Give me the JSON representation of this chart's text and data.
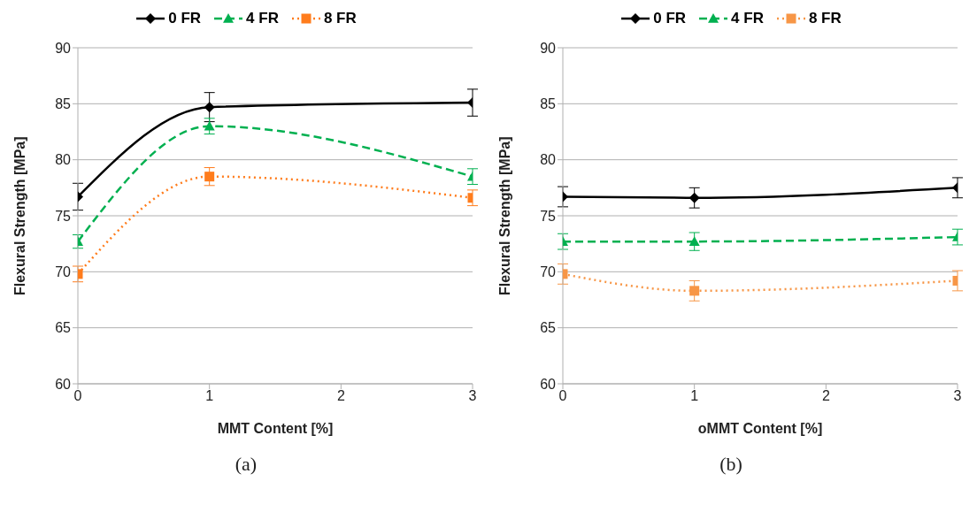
{
  "chart_data": [
    {
      "type": "line",
      "xlabel": "MMT Content [%]",
      "ylabel": "Flexural Strength [MPa]",
      "x": [
        0,
        1,
        3
      ],
      "xlim": [
        0,
        3
      ],
      "xticks": [
        0,
        1,
        2,
        3
      ],
      "ylim": [
        60,
        90
      ],
      "yticks": [
        60,
        65,
        70,
        75,
        80,
        85,
        90
      ],
      "grid": "y",
      "legend": "top",
      "annotations": [
        "(a)"
      ],
      "series": [
        {
          "name": "0 FR",
          "color": "#000000",
          "values": [
            76.7,
            84.7,
            85.1
          ],
          "errors": [
            1.2,
            1.3,
            1.2
          ],
          "marker": "diamond",
          "line_style": "solid"
        },
        {
          "name": "4 FR",
          "color": "#00b050",
          "values": [
            72.7,
            83.0,
            78.5
          ],
          "errors": [
            0.6,
            0.7,
            0.7
          ],
          "marker": "triangle",
          "line_style": "dashed"
        },
        {
          "name": "8 FR",
          "color": "#ff7c1c",
          "values": [
            69.8,
            78.5,
            76.6
          ],
          "errors": [
            0.7,
            0.8,
            0.7
          ],
          "marker": "square",
          "line_style": "dotted"
        }
      ]
    },
    {
      "type": "line",
      "xlabel": "oMMT Content [%]",
      "ylabel": "Flexural Strength [MPa]",
      "x": [
        0,
        1,
        3
      ],
      "xlim": [
        0,
        3
      ],
      "xticks": [
        0,
        1,
        2,
        3
      ],
      "ylim": [
        60,
        90
      ],
      "yticks": [
        60,
        65,
        70,
        75,
        80,
        85,
        90
      ],
      "grid": "y",
      "legend": "top",
      "annotations": [
        "(b)"
      ],
      "series": [
        {
          "name": "0 FR",
          "color": "#000000",
          "values": [
            76.7,
            76.6,
            77.5
          ],
          "errors": [
            0.9,
            0.9,
            0.9
          ],
          "marker": "diamond",
          "line_style": "solid"
        },
        {
          "name": "4 FR",
          "color": "#00b050",
          "values": [
            72.7,
            72.7,
            73.1
          ],
          "errors": [
            0.7,
            0.8,
            0.7
          ],
          "marker": "triangle",
          "line_style": "dashed"
        },
        {
          "name": "8 FR",
          "color": "#f79646",
          "values": [
            69.8,
            68.3,
            69.2
          ],
          "errors": [
            0.9,
            0.9,
            0.9
          ],
          "marker": "square",
          "line_style": "dotted"
        }
      ]
    }
  ]
}
